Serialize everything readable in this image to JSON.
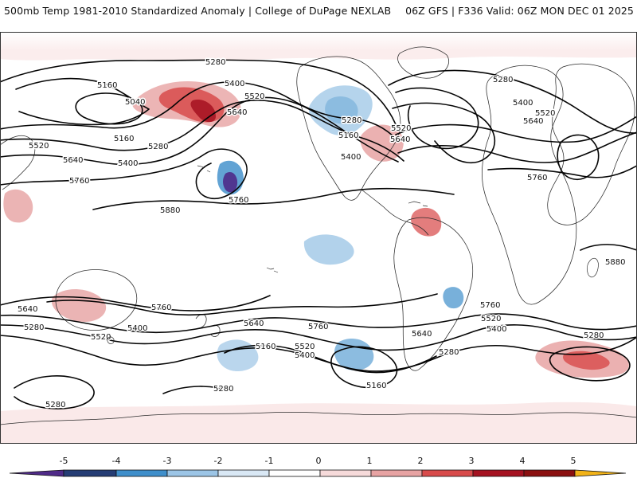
{
  "header": {
    "left_title": "500mb Temp 1981-2010 Standardized Anomaly | College of DuPage NEXLAB",
    "right_title": "06Z GFS | F336 Valid: 06Z MON DEC 01 2025"
  },
  "map": {
    "name": "global-temperature-anomaly-map",
    "contour_labels": [
      "5280",
      "5160",
      "5040",
      "5520",
      "5640",
      "5400",
      "5520",
      "5160",
      "5280",
      "5640",
      "5400",
      "5760",
      "5880",
      "5760",
      "5160",
      "5280",
      "5400",
      "5520",
      "5640",
      "5280",
      "5400",
      "5520",
      "5640",
      "5760",
      "5880",
      "5640",
      "5280",
      "5520",
      "5400",
      "5760",
      "5640",
      "5760",
      "5160",
      "5520",
      "5400",
      "5760",
      "5640",
      "5520",
      "5400",
      "5280",
      "5280",
      "5160",
      "5280",
      "5280"
    ]
  },
  "legend": {
    "tick_labels": [
      "-5",
      "-4",
      "-3",
      "-2",
      "-1",
      "0",
      "1",
      "2",
      "3",
      "4",
      "5"
    ],
    "colors": [
      "#4f2a88",
      "#253d75",
      "#3f8fcb",
      "#9cc5e6",
      "#d9e8f5",
      "#ffffff",
      "#f6dada",
      "#e7a3a3",
      "#d84b4b",
      "#a51221",
      "#f2b318"
    ]
  }
}
